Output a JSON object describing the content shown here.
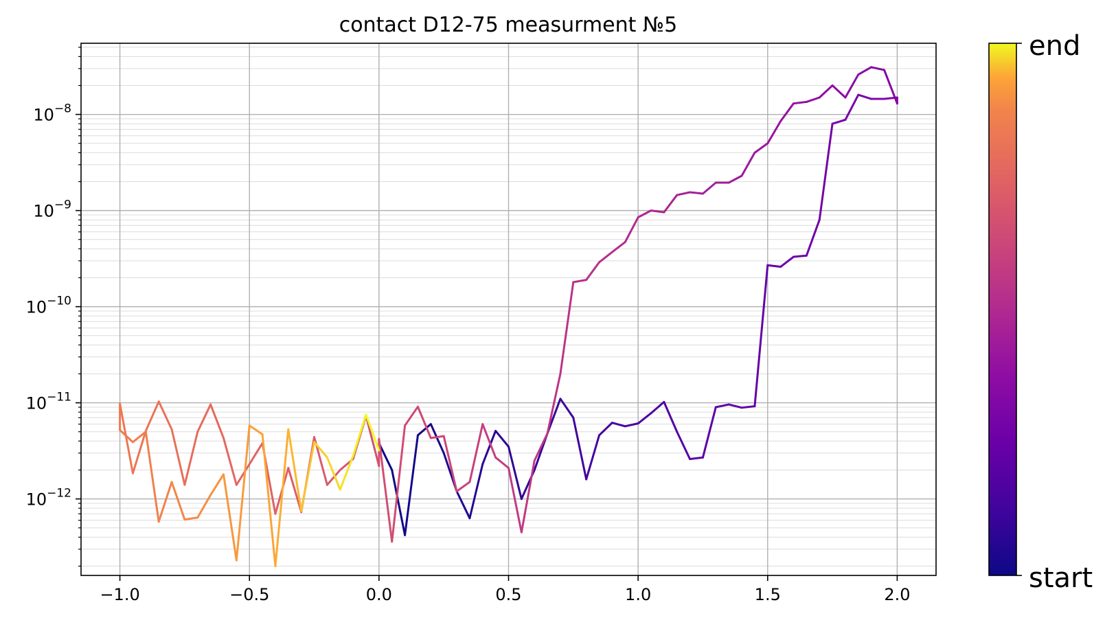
{
  "chart_data": {
    "type": "line",
    "title": "contact D12-75 measurment №5",
    "xlabel": "",
    "ylabel": "",
    "x_scale": "linear",
    "y_scale": "log",
    "xlim": [
      -1.15,
      2.15
    ],
    "ylim": [
      1.6e-13,
      5.5e-08
    ],
    "grid": "major and minor",
    "x_ticks": [
      -1.0,
      -0.5,
      0.0,
      0.5,
      1.0,
      1.5,
      2.0
    ],
    "x_tick_labels": [
      "−1.0",
      "−0.5",
      "0.0",
      "0.5",
      "1.0",
      "1.5",
      "2.0"
    ],
    "y_tick_exponents": [
      "−12",
      "−11",
      "−10",
      "−9",
      "−8"
    ],
    "colorbar": {
      "colormap": "plasma",
      "low_label": "start",
      "high_label": "end"
    },
    "series": [
      {
        "segment": "0 to 2",
        "x": [
          0.0,
          0.05,
          0.1,
          0.15,
          0.2,
          0.25,
          0.3,
          0.35,
          0.4,
          0.45,
          0.5,
          0.55,
          0.6,
          0.65,
          0.7,
          0.75,
          0.8,
          0.85,
          0.9,
          0.95,
          1.0,
          1.05,
          1.1,
          1.15,
          1.2,
          1.25,
          1.3,
          1.35,
          1.4,
          1.45,
          1.5,
          1.55,
          1.6,
          1.65,
          1.7,
          1.75,
          1.8,
          1.85,
          1.9,
          1.95,
          2.0
        ],
        "y": [
          3.8e-12,
          2e-12,
          4.2e-13,
          4.6e-12,
          6e-12,
          3e-12,
          1.2e-12,
          6.3e-13,
          2.3e-12,
          5.1e-12,
          3.5e-12,
          1e-12,
          2e-12,
          4.8e-12,
          1.1e-11,
          7e-12,
          1.6e-12,
          4.6e-12,
          6.2e-12,
          5.7e-12,
          6.1e-12,
          7.8e-12,
          1.02e-11,
          5e-12,
          2.6e-12,
          2.7e-12,
          9e-12,
          9.6e-12,
          8.9e-12,
          9.2e-12,
          2.7e-10,
          2.6e-10,
          3.3e-10,
          3.4e-10,
          8e-10,
          8e-09,
          8.8e-09,
          1.6e-08,
          1.45e-08,
          1.45e-08,
          1.5e-08
        ]
      },
      {
        "segment": "2 to 0",
        "x": [
          2.0,
          1.95,
          1.9,
          1.85,
          1.8,
          1.75,
          1.7,
          1.65,
          1.6,
          1.55,
          1.5,
          1.45,
          1.4,
          1.35,
          1.3,
          1.25,
          1.2,
          1.15,
          1.1,
          1.05,
          1.0,
          0.95,
          0.9,
          0.85,
          0.8,
          0.75,
          0.7,
          0.65,
          0.6,
          0.55,
          0.5,
          0.45,
          0.4,
          0.35,
          0.3,
          0.25,
          0.2,
          0.15,
          0.1,
          0.05,
          0.0
        ],
        "y": [
          1.3e-08,
          2.9e-08,
          3.1e-08,
          2.6e-08,
          1.5e-08,
          2e-08,
          1.5e-08,
          1.35e-08,
          1.3e-08,
          8.5e-09,
          5e-09,
          4e-09,
          2.3e-09,
          1.95e-09,
          1.95e-09,
          1.5e-09,
          1.55e-09,
          1.45e-09,
          9.6e-10,
          1e-09,
          8.5e-10,
          4.7e-10,
          3.7e-10,
          2.9e-10,
          1.9e-10,
          1.8e-10,
          2e-11,
          4.8e-12,
          2.5e-12,
          4.5e-13,
          2.1e-12,
          2.7e-12,
          6e-12,
          1.5e-12,
          1.2e-12,
          4.5e-12,
          4.3e-12,
          9.1e-12,
          5.8e-12,
          3.6e-13,
          4.2e-12
        ]
      },
      {
        "segment": "0 to -1",
        "x": [
          0.0,
          -0.05,
          -0.1,
          -0.15,
          -0.2,
          -0.25,
          -0.3,
          -0.35,
          -0.4,
          -0.45,
          -0.5,
          -0.55,
          -0.6,
          -0.65,
          -0.7,
          -0.75,
          -0.8,
          -0.85,
          -0.9,
          -0.95,
          -1.0
        ],
        "y": [
          2.2e-12,
          7.3e-12,
          2.6e-12,
          2e-12,
          1.4e-12,
          4.4e-12,
          7.3e-13,
          2.1e-12,
          7e-13,
          3.8e-12,
          2.3e-12,
          1.4e-12,
          4.3e-12,
          9.6e-12,
          5e-12,
          1.4e-12,
          5.3e-12,
          1.03e-11,
          5.1e-12,
          1.85e-12,
          9.8e-12
        ]
      },
      {
        "segment": "-1 to 0",
        "x": [
          -1.0,
          -0.95,
          -0.9,
          -0.85,
          -0.8,
          -0.75,
          -0.7,
          -0.65,
          -0.6,
          -0.55,
          -0.5,
          -0.45,
          -0.4,
          -0.35,
          -0.3,
          -0.25,
          -0.2,
          -0.15,
          -0.1,
          -0.05,
          0.0
        ],
        "y": [
          5.2e-12,
          3.9e-12,
          5e-12,
          5.8e-13,
          1.5e-12,
          6.1e-13,
          6.4e-13,
          1.1e-12,
          1.8e-12,
          2.3e-13,
          5.8e-12,
          4.7e-12,
          2e-13,
          5.3e-12,
          7.5e-13,
          3.9e-12,
          2.7e-12,
          1.25e-12,
          2.8e-12,
          7.5e-12,
          3.2e-12
        ]
      }
    ]
  }
}
